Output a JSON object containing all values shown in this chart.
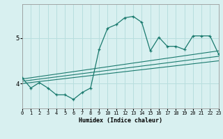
{
  "xlabel": "Humidex (Indice chaleur)",
  "bg_color": "#d8f0f0",
  "line_color": "#1a7a6e",
  "grid_color": "#b8dede",
  "x_ticks": [
    0,
    1,
    2,
    3,
    4,
    5,
    6,
    7,
    8,
    9,
    10,
    11,
    12,
    13,
    14,
    15,
    16,
    17,
    18,
    19,
    20,
    21,
    22,
    23
  ],
  "y_ticks": [
    4,
    5
  ],
  "xlim": [
    0,
    23
  ],
  "ylim": [
    3.45,
    5.75
  ],
  "main_line_x": [
    0,
    1,
    2,
    3,
    4,
    5,
    6,
    7,
    8,
    9,
    10,
    11,
    12,
    13,
    14,
    15,
    16,
    17,
    18,
    19,
    20,
    21,
    22,
    23
  ],
  "main_line_y": [
    4.12,
    3.9,
    4.02,
    3.9,
    3.75,
    3.75,
    3.65,
    3.8,
    3.9,
    4.75,
    5.22,
    5.3,
    5.45,
    5.48,
    5.35,
    4.72,
    5.02,
    4.82,
    4.82,
    4.75,
    5.05,
    5.05,
    5.05,
    4.65
  ],
  "line2_x": [
    0,
    23
  ],
  "line2_y": [
    4.1,
    4.72
  ],
  "line3_x": [
    0,
    23
  ],
  "line3_y": [
    4.05,
    4.6
  ],
  "line4_x": [
    0,
    23
  ],
  "line4_y": [
    4.0,
    4.5
  ]
}
